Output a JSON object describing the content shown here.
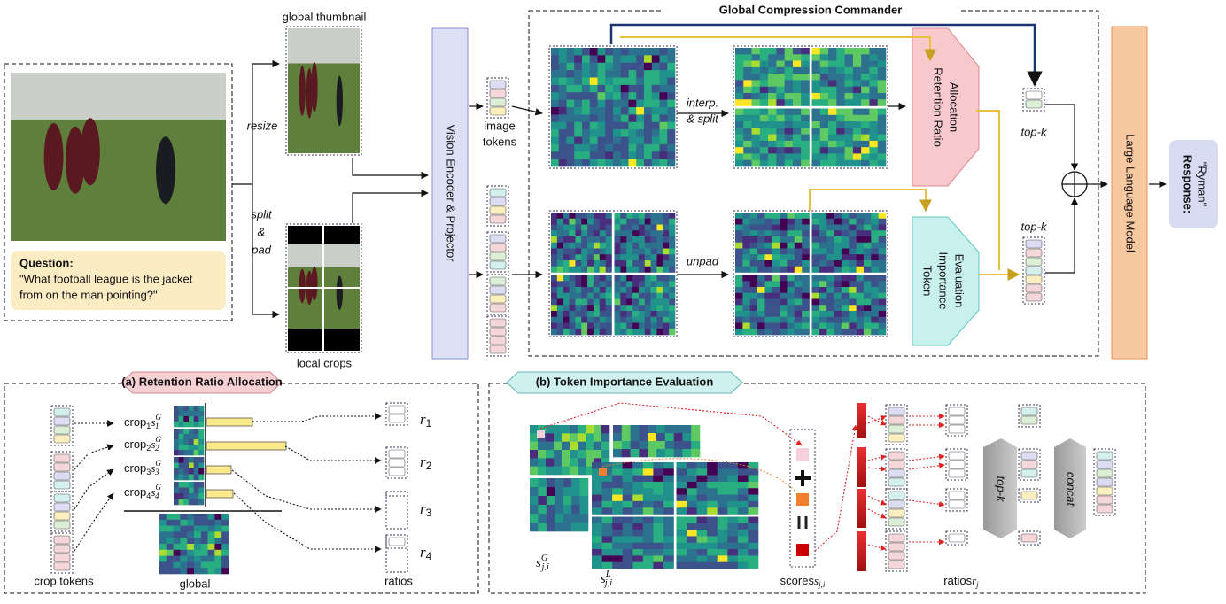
{
  "pipeline": {
    "global_thumbnail": "global thumbnail",
    "resize": "resize",
    "split": "split",
    "amp": "&",
    "pad": "pad",
    "local_crops": "local crops",
    "question_label": "Question:",
    "question_lines": [
      "\"What football league is the jacket",
      "from on the man pointing?\""
    ],
    "encoder": "Vision Encoder & Projector",
    "image_tokens": [
      "image",
      "tokens"
    ],
    "gcc_title": "Global Compression Commander",
    "interp_split": [
      "interp.",
      "& split"
    ],
    "unpad": "unpad",
    "rra": [
      "Retention Ratio",
      "Allocation"
    ],
    "tie": [
      "Token",
      "Importance",
      "Evaluation"
    ],
    "topk": [
      "top-k",
      "top-k"
    ],
    "llm": "Large Language Model",
    "response_label": "Response:",
    "response_text": "\"Ryman\""
  },
  "panel_a": {
    "title": "(a) Retention Ratio Allocation",
    "crops": [
      {
        "word": "crop",
        "idx": "1",
        "s": "s",
        "sup": "G",
        "sub": "1"
      },
      {
        "word": "crop",
        "idx": "2",
        "s": "s",
        "sup": "G",
        "sub": "2"
      },
      {
        "word": "crop",
        "idx": "3",
        "s": "s",
        "sup": "G",
        "sub": "3"
      },
      {
        "word": "crop",
        "idx": "4",
        "s": "s",
        "sup": "G",
        "sub": "4"
      }
    ],
    "global": "global",
    "crop_tokens": "crop tokens",
    "ratios": "ratios",
    "r": [
      {
        "sym": "r",
        "sub": "1"
      },
      {
        "sym": "r",
        "sub": "2"
      },
      {
        "sym": "r",
        "sub": "3"
      },
      {
        "sym": "r",
        "sub": "4"
      }
    ]
  },
  "panel_b": {
    "title": "(b) Token Importance Evaluation",
    "sG": {
      "sym": "s",
      "sup": "G",
      "sub": "j,i"
    },
    "sL": {
      "sym": "s",
      "sup": "L",
      "sub": "j,i"
    },
    "scores": {
      "word": "scores",
      "sym": "s",
      "sub": "j,i"
    },
    "ratios": {
      "word": "ratios",
      "sym": "r",
      "sub": "j"
    },
    "topk": "top-k",
    "concat": "concat"
  }
}
